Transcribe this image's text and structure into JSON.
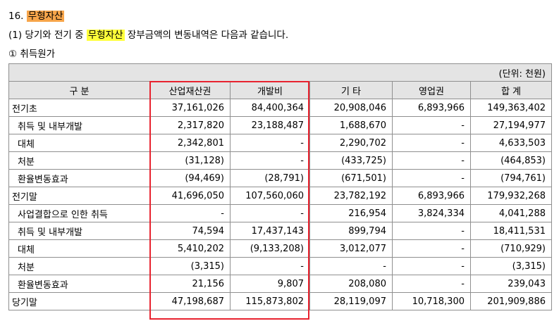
{
  "heading": {
    "number": "16.",
    "title": "무형자산"
  },
  "intro": {
    "prefix": "(1) 당기와 전기 중",
    "highlight": "무형자산",
    "suffix": "장부금액의 변동내역은 다음과 같습니다."
  },
  "subheading": "① 취득원가",
  "table": {
    "unit": "(단위: 천원)",
    "headers": [
      "구  분",
      "산업재산권",
      "개발비",
      "기  타",
      "영업권",
      "합  계"
    ],
    "rows": [
      {
        "label": "전기초",
        "indent": false,
        "values": [
          "37,161,026",
          "84,400,364",
          "20,908,046",
          "6,893,966",
          "149,363,402"
        ]
      },
      {
        "label": "취득 및 내부개발",
        "indent": true,
        "values": [
          "2,317,820",
          "23,188,487",
          "1,688,670",
          "-",
          "27,194,977"
        ]
      },
      {
        "label": "대체",
        "indent": true,
        "values": [
          "2,342,801",
          "-",
          "2,290,702",
          "-",
          "4,633,503"
        ]
      },
      {
        "label": "처분",
        "indent": true,
        "values": [
          "(31,128)",
          "-",
          "(433,725)",
          "-",
          "(464,853)"
        ]
      },
      {
        "label": "환율변동효과",
        "indent": true,
        "values": [
          "(94,469)",
          "(28,791)",
          "(671,501)",
          "-",
          "(794,761)"
        ]
      },
      {
        "label": "전기말",
        "indent": false,
        "values": [
          "41,696,050",
          "107,560,060",
          "23,782,192",
          "6,893,966",
          "179,932,268"
        ]
      },
      {
        "label": "사업결합으로 인한 취득",
        "indent": true,
        "values": [
          "-",
          "-",
          "216,954",
          "3,824,334",
          "4,041,288"
        ]
      },
      {
        "label": "취득 및 내부개발",
        "indent": true,
        "values": [
          "74,594",
          "17,437,143",
          "899,794",
          "-",
          "18,411,531"
        ]
      },
      {
        "label": "대체",
        "indent": true,
        "values": [
          "5,410,202",
          "(9,133,208)",
          "3,012,077",
          "-",
          "(710,929)"
        ]
      },
      {
        "label": "처분",
        "indent": true,
        "values": [
          "(3,315)",
          "-",
          "-",
          "-",
          "(3,315)"
        ]
      },
      {
        "label": "환율변동효과",
        "indent": true,
        "values": [
          "21,156",
          "9,807",
          "208,080",
          "-",
          "239,043"
        ]
      },
      {
        "label": "당기말",
        "indent": false,
        "values": [
          "47,198,687",
          "115,873,802",
          "28,119,097",
          "10,718,300",
          "201,909,886"
        ]
      }
    ]
  },
  "highlight_box_color": "#e8232f"
}
